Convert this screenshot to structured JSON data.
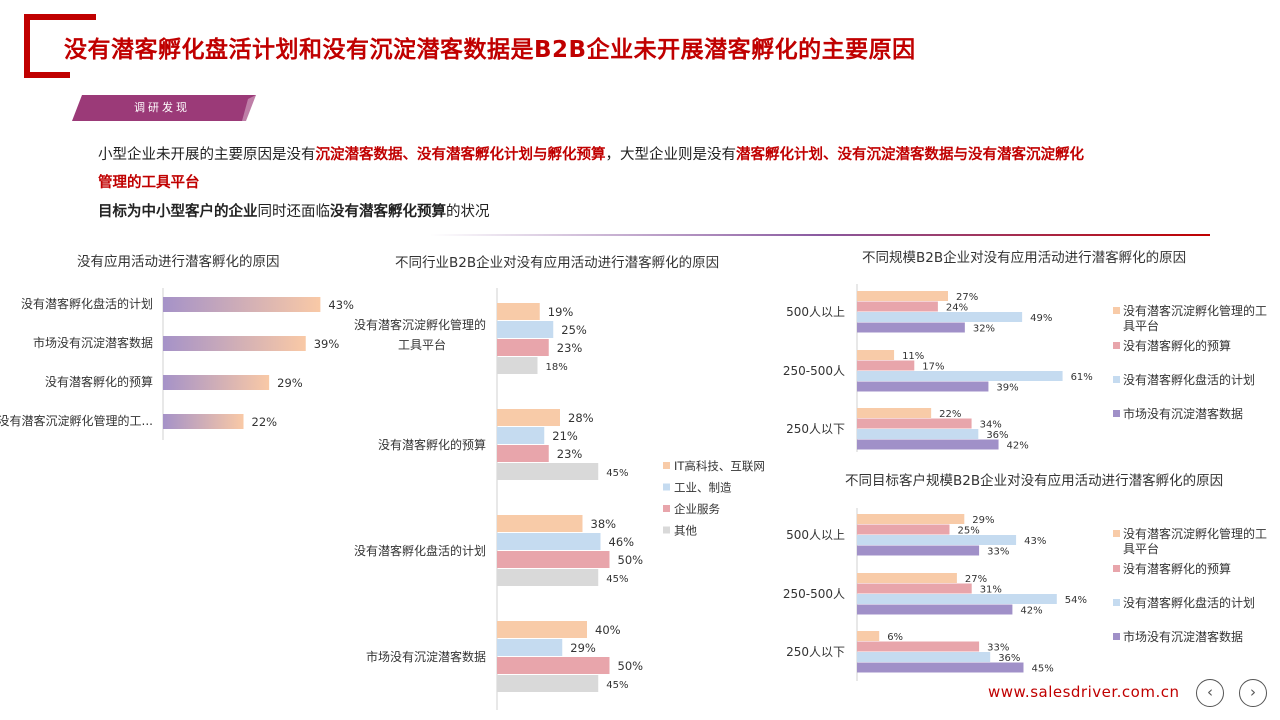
{
  "header": {
    "title": "没有潜客孵化盘活计划和没有沉淀潜客数据是B2B企业未开展潜客孵化的主要原因",
    "badge": "调研发现"
  },
  "intro": {
    "l1_a": "小型企业未开展的主要原因是没有",
    "l1_b": "沉淀潜客数据、没有潜客孵化计划与孵化预算",
    "l1_c": "，大型企业则是没有",
    "l1_d": "潜客孵化计划、没有沉淀潜客数据与没有潜客沉淀孵化",
    "l2_a": "管理的工具平台",
    "l3_a": "目标为中小型客户的企业",
    "l3_b": "同时还面临",
    "l3_c": "没有潜客孵化预算",
    "l3_d": "的状况"
  },
  "colors": {
    "red": "#c00000",
    "peach": "#f8cba8",
    "lightblue": "#c5dbf0",
    "pink": "#e8a5ab",
    "gray": "#d9d9d9",
    "purple": "#a090c8",
    "badge": "#9b3a78"
  },
  "chart_data": [
    {
      "id": "chart1",
      "type": "bar",
      "orientation": "horizontal",
      "title": "没有应用活动进行潜客孵化的原因",
      "categories": [
        "没有潜客孵化盘活的计划",
        "市场没有沉淀潜客数据",
        "没有潜客孵化的预算",
        "没有潜客沉淀孵化管理的工..."
      ],
      "values": [
        43,
        39,
        29,
        22
      ],
      "value_suffix": "%",
      "xlim": [
        0,
        50
      ]
    },
    {
      "id": "chart2",
      "type": "bar",
      "orientation": "horizontal",
      "title": "不同行业B2B企业对没有应用活动进行潜客孵化的原因",
      "categories": [
        "没有潜客沉淀孵化管理的工具平台",
        "没有潜客孵化的预算",
        "没有潜客孵化盘活的计划",
        "市场没有沉淀潜客数据"
      ],
      "series": [
        {
          "name": "IT高科技、互联网",
          "color": "#f8cba8",
          "values": [
            19,
            28,
            38,
            40
          ]
        },
        {
          "name": "工业、制造",
          "color": "#c5dbf0",
          "values": [
            25,
            21,
            46,
            29
          ]
        },
        {
          "name": "企业服务",
          "color": "#e8a5ab",
          "values": [
            23,
            23,
            50,
            50
          ]
        },
        {
          "name": "其他",
          "color": "#d9d9d9",
          "values": [
            18,
            45,
            45,
            45
          ]
        }
      ],
      "value_suffix": "%",
      "xlim": [
        0,
        60
      ],
      "legend": "right"
    },
    {
      "id": "chart3",
      "type": "bar",
      "orientation": "horizontal",
      "title": "不同规模B2B企业对没有应用活动进行潜客孵化的原因",
      "categories": [
        "500人以上",
        "250-500人",
        "250人以下"
      ],
      "series": [
        {
          "name": "没有潜客沉淀孵化管理的工具平台",
          "color": "#f8cba8",
          "values": [
            27,
            11,
            22
          ]
        },
        {
          "name": "没有潜客孵化的预算",
          "color": "#e8a5ab",
          "values": [
            24,
            17,
            34
          ]
        },
        {
          "name": "没有潜客孵化盘活的计划",
          "color": "#c5dbf0",
          "values": [
            49,
            61,
            36
          ]
        },
        {
          "name": "市场没有沉淀潜客数据",
          "color": "#a090c8",
          "values": [
            32,
            39,
            42
          ]
        }
      ],
      "value_suffix": "%",
      "xlim": [
        0,
        70
      ],
      "legend": "right"
    },
    {
      "id": "chart4",
      "type": "bar",
      "orientation": "horizontal",
      "title": "不同目标客户规模B2B企业对没有应用活动进行潜客孵化的原因",
      "categories": [
        "500人以上",
        "250-500人",
        "250人以下"
      ],
      "series": [
        {
          "name": "没有潜客沉淀孵化管理的工具平台",
          "color": "#f8cba8",
          "values": [
            29,
            27,
            6
          ]
        },
        {
          "name": "没有潜客孵化的预算",
          "color": "#e8a5ab",
          "values": [
            25,
            31,
            33
          ]
        },
        {
          "name": "没有潜客孵化盘活的计划",
          "color": "#c5dbf0",
          "values": [
            43,
            54,
            36
          ]
        },
        {
          "name": "市场没有沉淀潜客数据",
          "color": "#a090c8",
          "values": [
            33,
            42,
            45
          ]
        }
      ],
      "value_suffix": "%",
      "xlim": [
        0,
        70
      ],
      "legend": "right"
    }
  ],
  "footer": {
    "url": "www.salesdriver.com.cn",
    "prev_icon": "chevron-left-icon",
    "next_icon": "chevron-right-icon",
    "prev_glyph": "‹",
    "next_glyph": "›"
  }
}
